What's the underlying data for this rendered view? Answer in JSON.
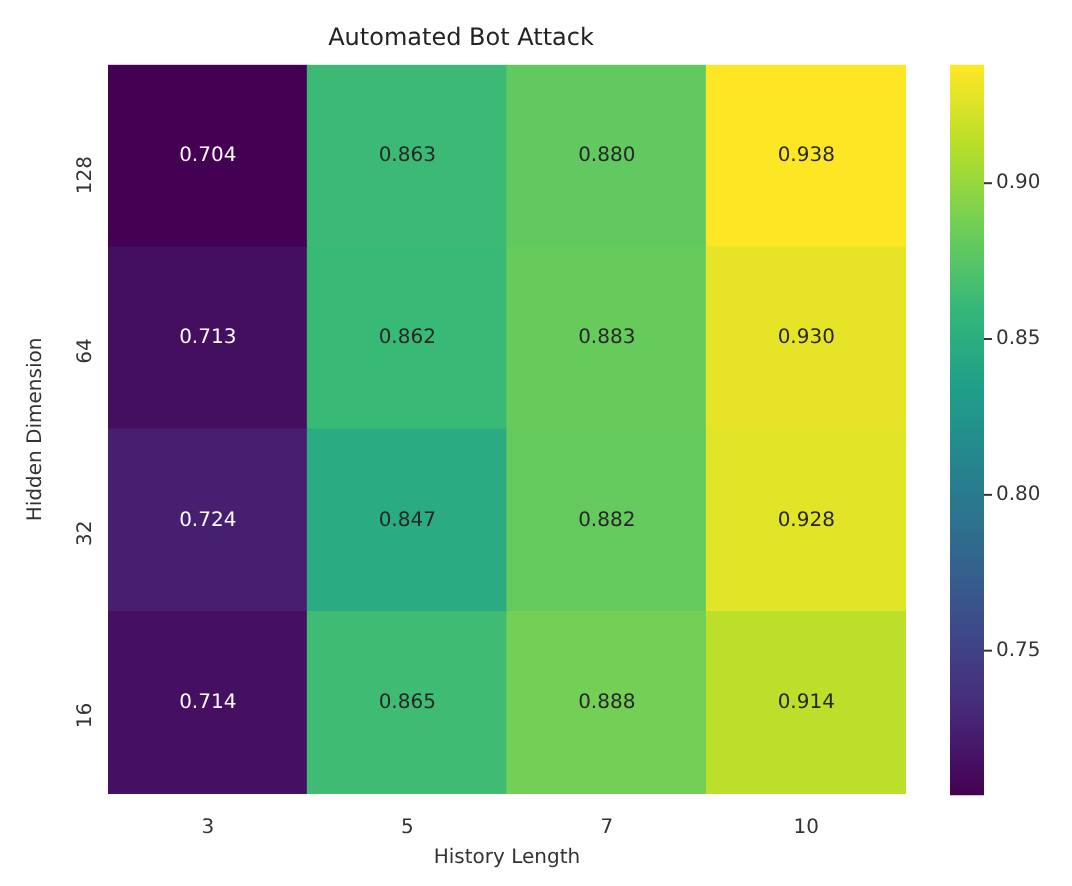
{
  "chart_data": {
    "type": "heatmap",
    "title": "Automated Bot Attack",
    "xlabel": "History Length",
    "ylabel": "Hidden Dimension",
    "categories": [
      "3",
      "5",
      "7",
      "10"
    ],
    "y_categories": [
      "128",
      "64",
      "32",
      "16"
    ],
    "cells": [
      [
        0.704,
        0.863,
        0.88,
        0.938
      ],
      [
        0.713,
        0.862,
        0.883,
        0.93
      ],
      [
        0.724,
        0.847,
        0.882,
        0.928
      ],
      [
        0.714,
        0.865,
        0.888,
        0.914
      ]
    ],
    "cell_labels": [
      [
        "0.704",
        "0.863",
        "0.880",
        "0.938"
      ],
      [
        "0.713",
        "0.862",
        "0.883",
        "0.930"
      ],
      [
        "0.724",
        "0.847",
        "0.882",
        "0.928"
      ],
      [
        "0.714",
        "0.865",
        "0.888",
        "0.914"
      ]
    ],
    "clim": [
      0.704,
      0.938
    ],
    "cticks": [
      0.75,
      {
        "value": 0.8,
        "label": "0.80"
      },
      0.85,
      {
        "value": 0.9,
        "label": "0.90"
      }
    ]
  }
}
